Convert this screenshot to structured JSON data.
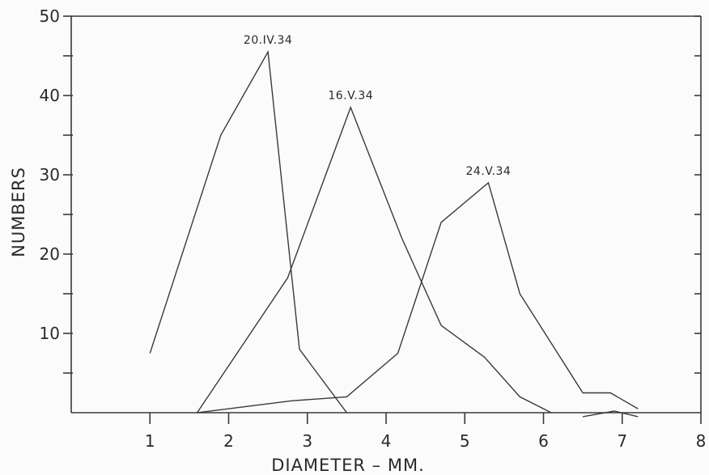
{
  "chart_data": {
    "type": "line",
    "xlabel": "DIAMETER  –  MM.",
    "ylabel": "NUMBERS",
    "xlim": [
      0,
      8
    ],
    "ylim": [
      0,
      50
    ],
    "x_ticks": [
      1,
      2,
      3,
      4,
      5,
      6,
      7,
      8
    ],
    "y_ticks_labeled": [
      10,
      20,
      30,
      40,
      50
    ],
    "y_ticks_minor": [
      5,
      15,
      25,
      35,
      45
    ],
    "grid": false,
    "series": [
      {
        "name": "20.IV.34",
        "x": [
          1.0,
          1.9,
          2.5,
          2.9,
          3.5
        ],
        "y": [
          7.5,
          35,
          45.5,
          8,
          0
        ]
      },
      {
        "name": "16.V.34",
        "x": [
          1.6,
          2.75,
          3.55,
          4.2,
          4.7,
          5.25,
          5.7,
          6.1
        ],
        "y": [
          0,
          17,
          38.5,
          22,
          11,
          7,
          2,
          0
        ]
      },
      {
        "name": "24.V.34",
        "x": [
          1.6,
          2.8,
          3.5,
          4.15,
          4.7,
          5.3,
          5.7,
          6.5,
          6.85,
          7.2
        ],
        "y": [
          0,
          1.5,
          2,
          7.5,
          24,
          29,
          15,
          2.5,
          2.5,
          0.5
        ]
      }
    ],
    "extra_segment": {
      "x": [
        6.5,
        6.9,
        7.2
      ],
      "y": [
        -0.5,
        0.2,
        -0.5
      ]
    }
  }
}
